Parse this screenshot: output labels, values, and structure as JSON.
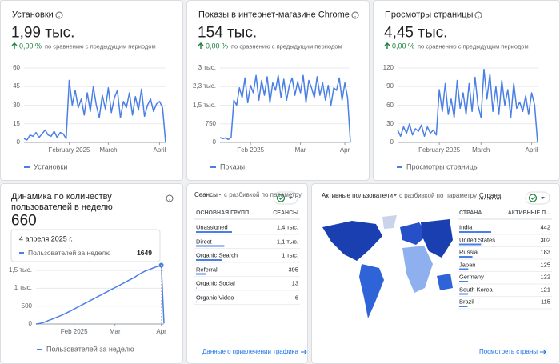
{
  "cards": [
    {
      "title": "Установки",
      "value": "1,99 тыс.",
      "change": "0,00 %",
      "comparison": "по сравнению с предыдущим периодом",
      "chart": {
        "type": "line",
        "ylim": [
          0,
          60
        ],
        "yticks": [
          0,
          15,
          30,
          45,
          60
        ],
        "grid": true,
        "categories": [
          null,
          null,
          null,
          null,
          null,
          null,
          null,
          null,
          null,
          null,
          null,
          null,
          null,
          null,
          null,
          "February 2025",
          null,
          null,
          null,
          null,
          null,
          null,
          null,
          null,
          null,
          null,
          null,
          null,
          "March",
          null,
          null,
          null,
          null,
          null,
          null,
          null,
          null,
          null,
          null,
          null,
          null,
          null,
          null,
          null,
          null,
          "April",
          null,
          null
        ],
        "series": [
          {
            "name": "Установки",
            "color": "#4a7fe6",
            "values": [
              3,
              2,
              6,
              5,
              8,
              4,
              7,
              10,
              6,
              5,
              9,
              4,
              8,
              7,
              3,
              50,
              30,
              42,
              28,
              35,
              22,
              40,
              25,
              45,
              30,
              20,
              38,
              27,
              44,
              24,
              36,
              42,
              20,
              33,
              28,
              40,
              22,
              37,
              26,
              43,
              21,
              30,
              35,
              25,
              31,
              33,
              28,
              0
            ]
          }
        ]
      }
    },
    {
      "title": "Показы в интернет-магазине Chrome",
      "value": "154 тыс.",
      "change": "0,00 %",
      "comparison": "по сравнению с предыдущим периодом",
      "chart": {
        "type": "line",
        "ylim": [
          0,
          3000
        ],
        "yticks": [
          0,
          {
            "value": 750,
            "label": "750"
          },
          {
            "value": 1500,
            "label": "1,5 тыс."
          },
          {
            "value": 2250,
            "label": "2,3 тыс."
          },
          {
            "value": 3000,
            "label": "3 тыс."
          }
        ],
        "grid": true,
        "categories": [
          null,
          null,
          null,
          null,
          null,
          null,
          null,
          null,
          null,
          null,
          null,
          "Feb 2025",
          null,
          null,
          null,
          null,
          null,
          null,
          null,
          null,
          null,
          null,
          null,
          null,
          null,
          null,
          null,
          null,
          null,
          "Mar",
          null,
          null,
          null,
          null,
          null,
          null,
          null,
          null,
          null,
          null,
          null,
          null,
          null,
          null,
          null,
          "Apr",
          null,
          null
        ],
        "series": [
          {
            "name": "Показы",
            "color": "#4a7fe6",
            "values": [
              200,
              150,
              180,
              120,
              200,
              1700,
              1500,
              2200,
              1800,
              2600,
              1600,
              2300,
              2000,
              2700,
              1700,
              2500,
              1900,
              2650,
              1600,
              2400,
              2100,
              2700,
              1800,
              2550,
              1700,
              2300,
              2600,
              1900,
              2450,
              2000,
              2700,
              1600,
              2500,
              2200,
              1800,
              2650,
              1900,
              2400,
              1700,
              2300,
              1500,
              2200,
              2100,
              2600,
              1700,
              2400,
              1800,
              0
            ]
          }
        ]
      }
    },
    {
      "title": "Просмотры страницы",
      "value": "4,45 тыс.",
      "change": "0,00 %",
      "comparison": "по сравнению с предыдущим периодом",
      "chart": {
        "type": "line",
        "ylim": [
          0,
          120
        ],
        "yticks": [
          0,
          30,
          60,
          90,
          120
        ],
        "grid": true,
        "categories": [
          null,
          null,
          null,
          null,
          null,
          null,
          null,
          null,
          null,
          null,
          null,
          null,
          null,
          null,
          "February 2025",
          null,
          null,
          null,
          null,
          null,
          null,
          null,
          null,
          null,
          null,
          null,
          null,
          null,
          "March",
          null,
          null,
          null,
          null,
          null,
          null,
          null,
          null,
          null,
          null,
          null,
          null,
          null,
          null,
          null,
          null,
          "April",
          null,
          null
        ],
        "series": [
          {
            "name": "Просмотры страницы",
            "color": "#4a7fe6",
            "values": [
              20,
              10,
              25,
              15,
              30,
              12,
              22,
              18,
              28,
              10,
              25,
              15,
              20,
              12,
              85,
              50,
              95,
              45,
              70,
              40,
              100,
              55,
              80,
              45,
              95,
              50,
              105,
              60,
              40,
              118,
              70,
              110,
              50,
              90,
              45,
              100,
              60,
              85,
              40,
              95,
              55,
              65,
              50,
              75,
              45,
              80,
              60,
              0
            ]
          }
        ]
      }
    }
  ],
  "users_card": {
    "title": "Динамика по количеству пользователей в неделю",
    "value": "660",
    "tooltip": {
      "date": "4 апреля 2025 г.",
      "label": "Пользователей за неделю",
      "value": 1649
    },
    "chart": {
      "type": "line",
      "ylim": [
        0,
        1750
      ],
      "yticks": [
        0,
        500,
        {
          "value": 1000,
          "label": "1 тыс."
        },
        {
          "value": 1500,
          "label": "1,5 тыс."
        }
      ],
      "grid": true,
      "categories": [
        null,
        null,
        null,
        null,
        null,
        null,
        null,
        null,
        null,
        null,
        null,
        null,
        null,
        null,
        "Feb 2025",
        null,
        null,
        null,
        null,
        null,
        null,
        null,
        null,
        null,
        null,
        null,
        null,
        null,
        null,
        "Mar",
        null,
        null,
        null,
        null,
        null,
        null,
        null,
        null,
        null,
        null,
        null,
        null,
        null,
        null,
        null,
        null,
        "Apr",
        null
      ],
      "series": [
        {
          "name": "Пользователей за неделю",
          "color": "#4a7fe6",
          "values": [
            0,
            10,
            25,
            50,
            80,
            110,
            140,
            170,
            200,
            230,
            265,
            300,
            340,
            380,
            420,
            460,
            500,
            540,
            580,
            620,
            660,
            700,
            740,
            780,
            820,
            860,
            900,
            940,
            980,
            1020,
            1060,
            1100,
            1140,
            1180,
            1220,
            1260,
            1300,
            1350,
            1400,
            1440,
            1480,
            1510,
            1540,
            1570,
            1600,
            1620,
            1649,
            20
          ]
        }
      ]
    }
  },
  "sessions_card": {
    "title": "Сеансы",
    "subtitle": "с разбивкой по параметру",
    "columns": [
      "ОСНОВНАЯ ГРУПП...",
      "СЕАНСЫ"
    ],
    "color": "#4a7fe6",
    "rows": [
      {
        "label": "Unassigned",
        "value": 1400,
        "value_label": "1,4 тыс."
      },
      {
        "label": "Direct",
        "value": 1100,
        "value_label": "1,1 тыс."
      },
      {
        "label": "Organic Search",
        "value": 1000,
        "value_label": "1 тыс."
      },
      {
        "label": "Referral",
        "value": 395,
        "value_label": "395"
      },
      {
        "label": "Organic Social",
        "value": 13,
        "value_label": "13"
      },
      {
        "label": "Organic Video",
        "value": 6,
        "value_label": "6"
      }
    ],
    "link": "Данные о привлечении трафика"
  },
  "countries_card": {
    "title": "Активные пользователи",
    "subtitle": "с разбивкой по параметру",
    "dimension": "Страна",
    "columns": [
      "СТРАНА",
      "АКТИВНЫЕ П..."
    ],
    "color": "#4a7fe6",
    "rows": [
      {
        "label": "India",
        "value": 442
      },
      {
        "label": "United States",
        "value": 302
      },
      {
        "label": "Russia",
        "value": 183
      },
      {
        "label": "Japan",
        "value": 125
      },
      {
        "label": "Germany",
        "value": 122
      },
      {
        "label": "South Korea",
        "value": 121
      },
      {
        "label": "Brazil",
        "value": 115
      }
    ],
    "link": "Посмотреть страны"
  }
}
